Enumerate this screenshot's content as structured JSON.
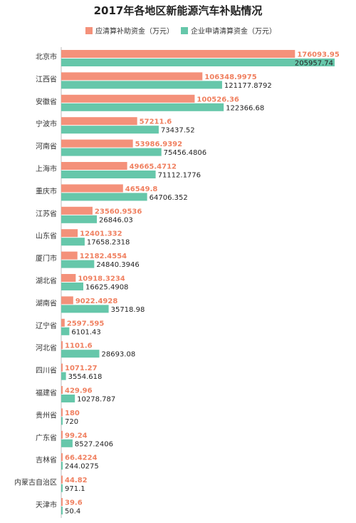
{
  "chart_data": {
    "type": "bar",
    "orientation": "horizontal",
    "title": "2017年各地区新能源汽车补贴情况",
    "legend_placement": "top",
    "colors": {
      "series_a": "#f4917a",
      "series_b": "#66c7aa",
      "label_a": "#f08060"
    },
    "categories": [
      "北京市",
      "江西省",
      "安徽省",
      "宁波市",
      "河南省",
      "上海市",
      "重庆市",
      "江苏省",
      "山东省",
      "厦门市",
      "湖北省",
      "湖南省",
      "辽宁省",
      "河北省",
      "四川省",
      "福建省",
      "贵州省",
      "广东省",
      "吉林省",
      "内蒙古自治区",
      "天津市"
    ],
    "series": [
      {
        "name": "应清算补助资金（万元）",
        "values": [
          176093.95,
          106348.9975,
          100526.36,
          57211.6,
          53986.9392,
          49665.4712,
          46549.8,
          23560.9536,
          12401.332,
          12182.4554,
          10918.3234,
          9022.4928,
          2597.595,
          1101.6,
          1071.27,
          429.96,
          180,
          99.24,
          66.4224,
          44.82,
          39.6
        ],
        "labels": [
          "176093.95",
          "106348.9975",
          "100526.36",
          "57211.6",
          "53986.9392",
          "49665.4712",
          "46549.8",
          "23560.9536",
          "12401.332",
          "12182.4554",
          "10918.3234",
          "9022.4928",
          "2597.595",
          "1101.6",
          "1071.27",
          "429.96",
          "180",
          "99.24",
          "66.4224",
          "44.82",
          "39.6"
        ]
      },
      {
        "name": "企业申请清算资金（万元）",
        "values": [
          205957.74,
          121177.8792,
          122366.68,
          73437.52,
          75456.4806,
          71112.1776,
          64706.352,
          26846.03,
          17658.2318,
          24840.3946,
          16625.4908,
          35718.98,
          6101.43,
          28693.08,
          3554.618,
          10278.787,
          720,
          8527.2406,
          244.0275,
          971.1,
          50.4
        ],
        "labels": [
          "205957.74",
          "121177.8792",
          "122366.68",
          "73437.52",
          "75456.4806",
          "71112.1776",
          "64706.352",
          "26846.03",
          "17658.2318",
          "24840.3946",
          "16625.4908",
          "35718.98",
          "6101.43",
          "28693.08",
          "3554.618",
          "10278.787",
          "720",
          "8527.2406",
          "244.0275",
          "971.1",
          "50.4"
        ]
      }
    ],
    "xlim": [
      0,
      205957.74
    ],
    "grid": false
  }
}
